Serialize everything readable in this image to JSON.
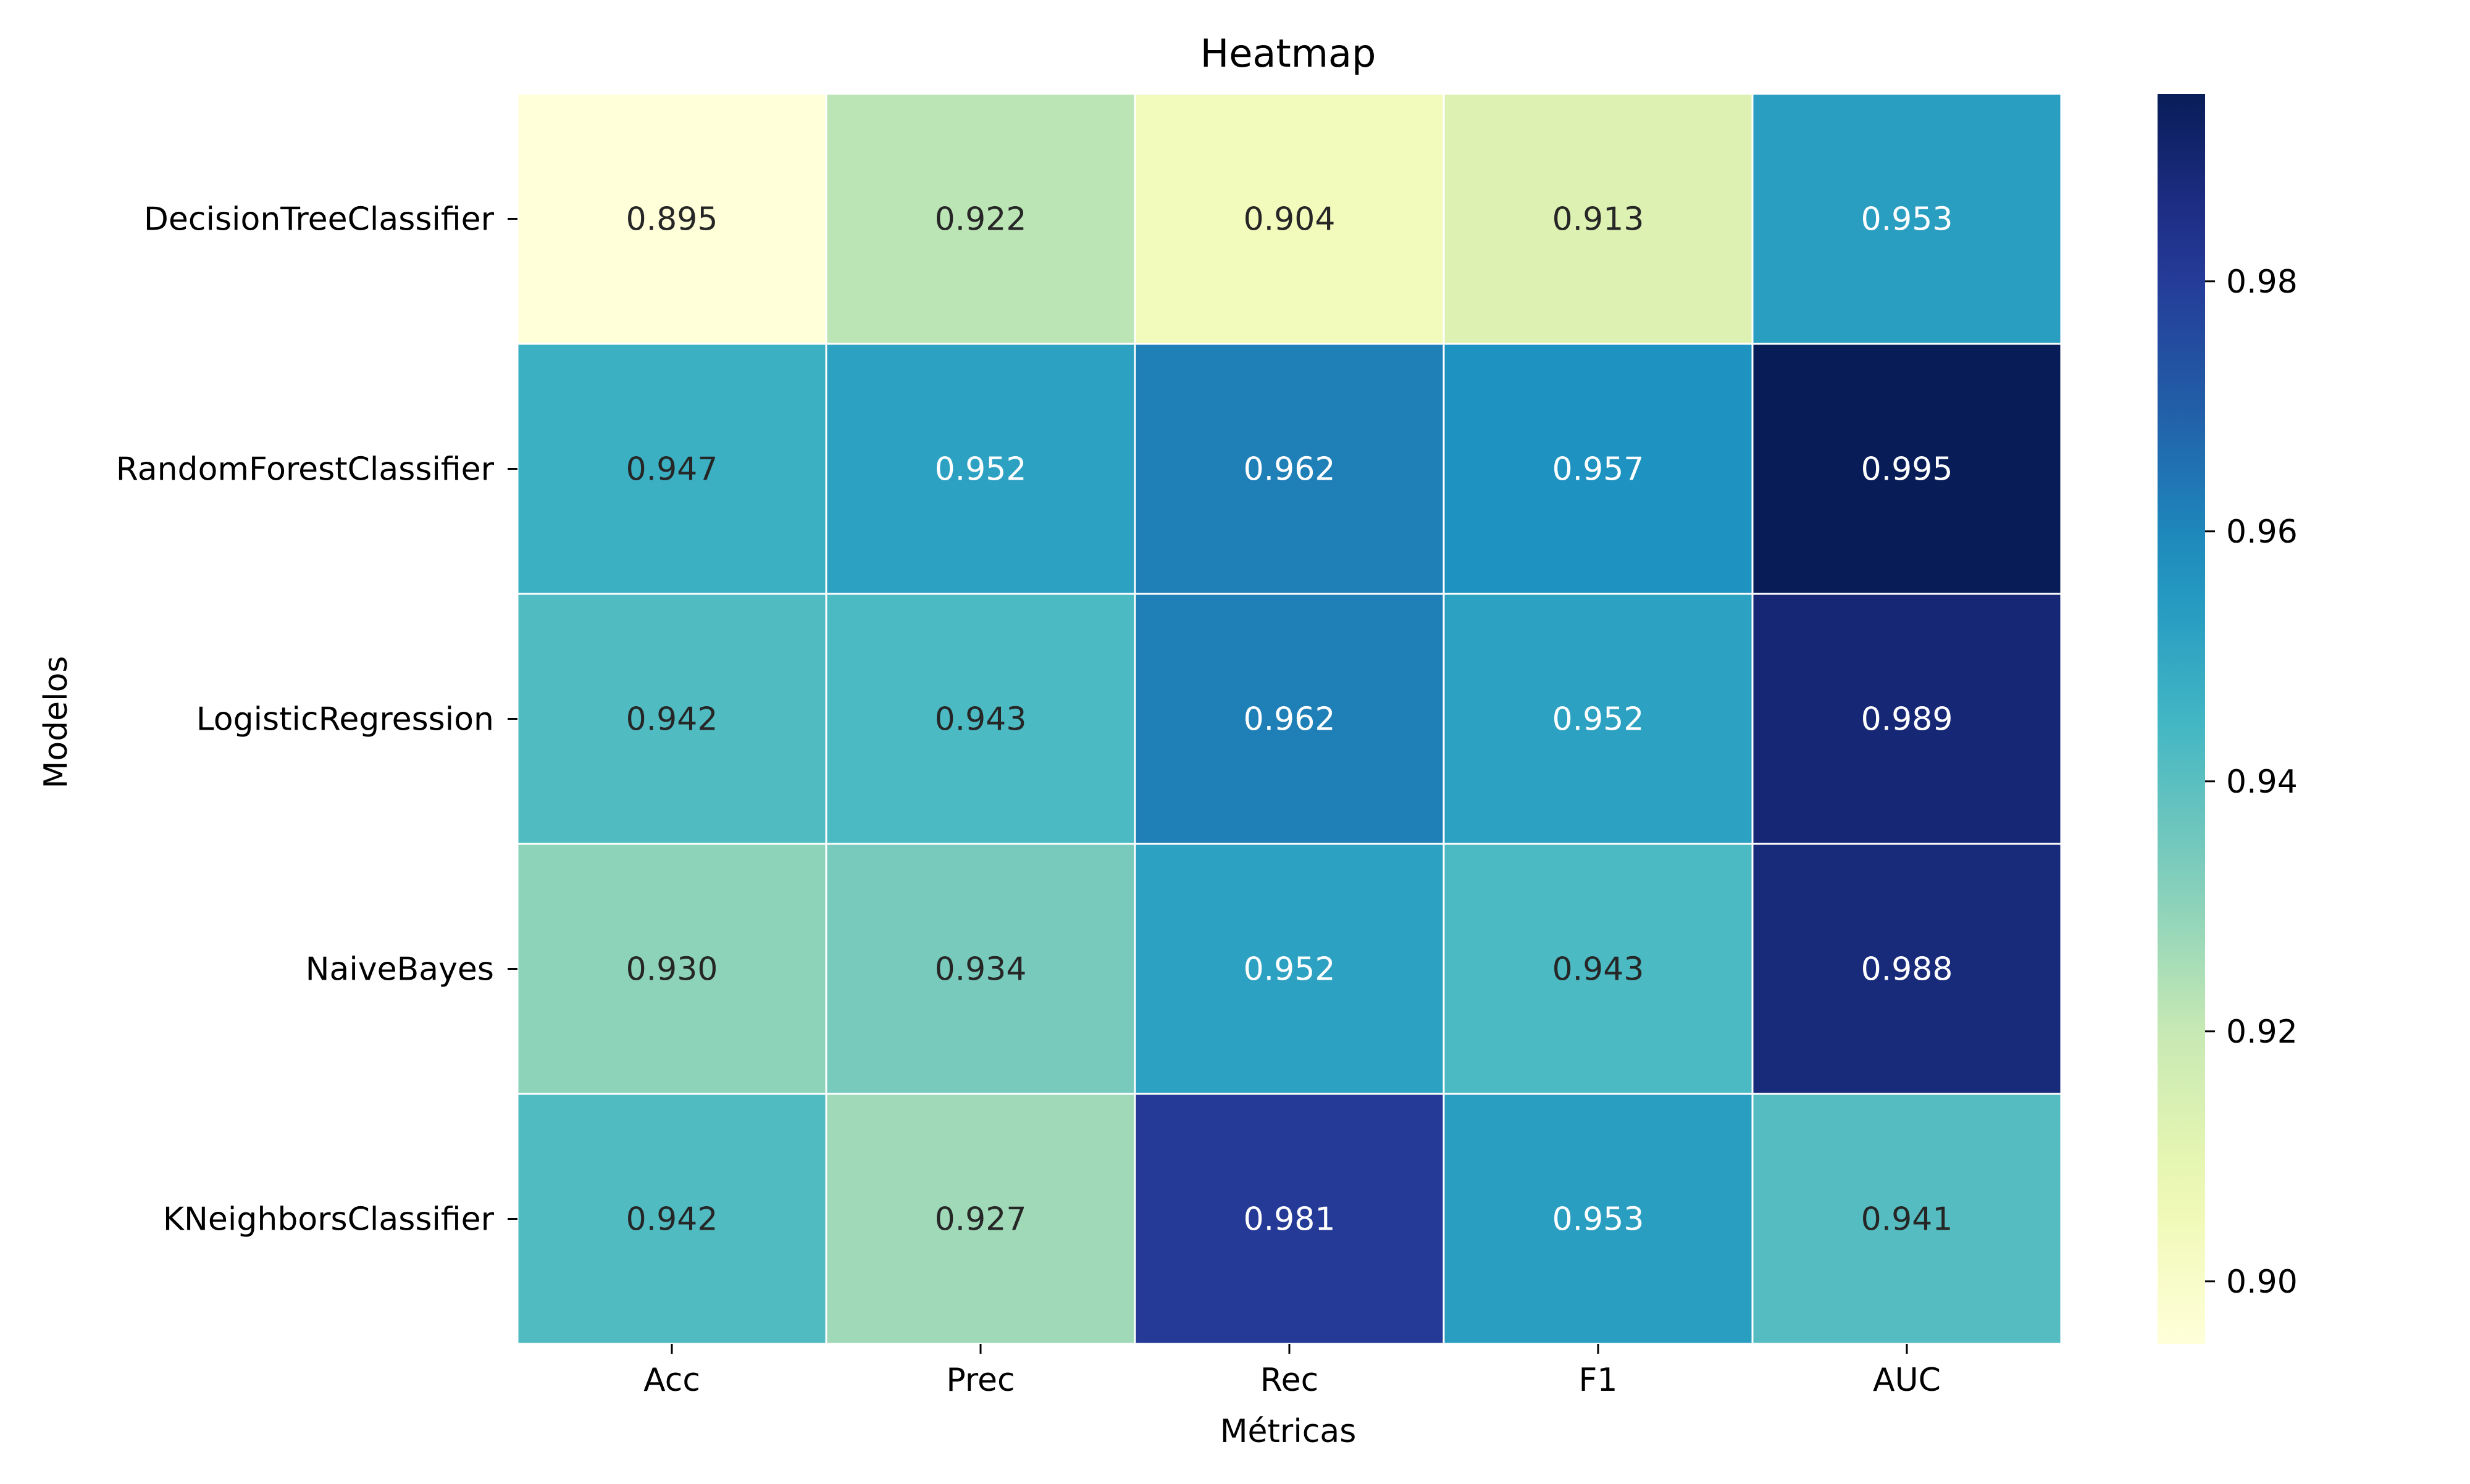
{
  "chart_data": {
    "type": "heatmap",
    "title": "Heatmap",
    "xlabel": "Métricas",
    "ylabel": "Modelos",
    "x_categories": [
      "Acc",
      "Prec",
      "Rec",
      "F1",
      "AUC"
    ],
    "y_categories": [
      "DecisionTreeClassifier",
      "RandomForestClassifier",
      "LogisticRegression",
      "NaiveBayes",
      "KNeighborsClassifier"
    ],
    "values": [
      [
        0.895,
        0.922,
        0.904,
        0.913,
        0.953
      ],
      [
        0.947,
        0.952,
        0.962,
        0.957,
        0.995
      ],
      [
        0.942,
        0.943,
        0.962,
        0.952,
        0.989
      ],
      [
        0.93,
        0.934,
        0.952,
        0.943,
        0.988
      ],
      [
        0.942,
        0.927,
        0.981,
        0.953,
        0.941
      ]
    ],
    "value_labels": [
      [
        "0.895",
        "0.922",
        "0.904",
        "0.913",
        "0.953"
      ],
      [
        "0.947",
        "0.952",
        "0.962",
        "0.957",
        "0.995"
      ],
      [
        "0.942",
        "0.943",
        "0.962",
        "0.952",
        "0.989"
      ],
      [
        "0.930",
        "0.934",
        "0.952",
        "0.943",
        "0.988"
      ],
      [
        "0.942",
        "0.927",
        "0.981",
        "0.953",
        "0.941"
      ]
    ],
    "colormap": "YlGnBu",
    "color_range": [
      0.895,
      0.995
    ],
    "colorbar_ticks": [
      "0.90",
      "0.92",
      "0.94",
      "0.96",
      "0.98"
    ],
    "colorbar_tick_values": [
      0.9,
      0.92,
      0.94,
      0.96,
      0.98
    ],
    "colorbar_position": "right",
    "grid": false
  }
}
